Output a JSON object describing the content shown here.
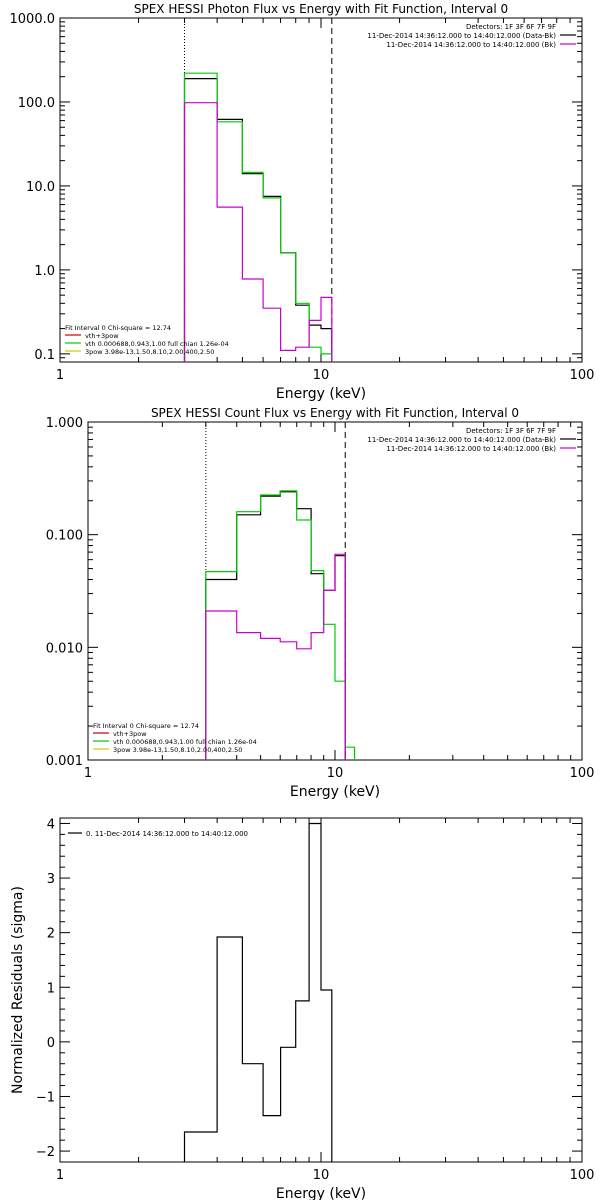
{
  "chart_data": [
    {
      "type": "line",
      "title": "SPEX HESSI Photon Flux vs Energy with Fit Function, Interval 0",
      "xlabel": "Energy (keV)",
      "ylabel": "",
      "xscale": "log",
      "yscale": "log",
      "xlim": [
        1,
        100
      ],
      "ylim": [
        0.08,
        1000
      ],
      "xticks": [
        "1",
        "10",
        "100"
      ],
      "yticks": [
        {
          "v": 0.1,
          "label": "0.1"
        },
        {
          "v": 1,
          "label": "1.0"
        },
        {
          "v": 10,
          "label": "10.0"
        },
        {
          "v": 100,
          "label": "100.0"
        },
        {
          "v": 1000,
          "label": "1000.0"
        }
      ],
      "vlines": [
        {
          "x": 3.0,
          "style": "dotted"
        },
        {
          "x": 11.0,
          "style": "dashed"
        }
      ],
      "legend_top": {
        "position": "top-right",
        "lines": [
          {
            "text": "Detectors: 1F 3F 6F 7F 9F",
            "color": ""
          },
          {
            "text": "11-Dec-2014 14:36:12.000 to 14:40:12.000 (Data-Bk)",
            "color": "#000000"
          },
          {
            "text": "11-Dec-2014 14:36:12.000 to 14:40:12.000 (Bk)",
            "color": "#cc00cc"
          }
        ]
      },
      "legend_bottom": {
        "position": "bottom-left",
        "lines": [
          {
            "text": "Fit Interval 0   Chi-square = 12.74",
            "color": ""
          },
          {
            "text": "vth+3pow",
            "color": "#cc0000"
          },
          {
            "text": "vth 0.000688,0.943,1.00  full chian 1.26e-04",
            "color": "#00cc00"
          },
          {
            "text": "3pow 3.98e-13,1.50,8.10,2.00,400,2.50",
            "color": "#cccc00"
          }
        ]
      },
      "series": [
        {
          "color": "#000000",
          "edges": [
            3.0,
            4.0,
            5.0,
            6.0,
            7.0,
            8.0,
            9.0,
            10.0,
            11.0
          ],
          "values": [
            190,
            62,
            14,
            7.5,
            1.6,
            0.38,
            0.22,
            0.2
          ]
        },
        {
          "color": "#00cc00",
          "edges": [
            3.0,
            4.0,
            5.0,
            6.0,
            7.0,
            8.0,
            9.0,
            10.0,
            11.0
          ],
          "values": [
            220,
            58,
            14.5,
            7.2,
            1.6,
            0.4,
            0.12,
            0.1
          ]
        },
        {
          "color": "#cc00cc",
          "edges": [
            3.0,
            4.0,
            5.0,
            6.0,
            7.0,
            8.0,
            9.0,
            10.0,
            11.0
          ],
          "values": [
            98,
            5.6,
            0.78,
            0.35,
            0.11,
            0.12,
            0.25,
            0.47
          ]
        }
      ]
    },
    {
      "type": "line",
      "title": "SPEX HESSI Count Flux vs Energy with Fit Function, Interval 0",
      "xlabel": "Energy (keV)",
      "ylabel": "",
      "xscale": "log",
      "yscale": "log",
      "xlim": [
        1,
        100
      ],
      "ylim": [
        0.001,
        1
      ],
      "xticks": [
        "1",
        "10",
        "100"
      ],
      "yticks": [
        {
          "v": 0.001,
          "label": "0.001"
        },
        {
          "v": 0.01,
          "label": "0.010"
        },
        {
          "v": 0.1,
          "label": "0.100"
        },
        {
          "v": 1,
          "label": "1.000"
        }
      ],
      "vlines": [
        {
          "x": 3.0,
          "style": "dotted"
        },
        {
          "x": 11.0,
          "style": "dashed"
        }
      ],
      "legend_top": {
        "position": "top-right",
        "lines": [
          {
            "text": "Detectors: 1F 3F 6F 7F 9F",
            "color": ""
          },
          {
            "text": "11-Dec-2014 14:36:12.000 to 14:40:12.000 (Data-Bk)",
            "color": "#000000"
          },
          {
            "text": "11-Dec-2014 14:36:12.000 to 14:40:12.000 (Bk)",
            "color": "#cc00cc"
          }
        ]
      },
      "legend_bottom": {
        "position": "bottom-left",
        "lines": [
          {
            "text": "Fit Interval 0   Chi-square = 12.74",
            "color": ""
          },
          {
            "text": "vth+3pow",
            "color": "#cc0000"
          },
          {
            "text": "vth 0.000688,0.943,1.00  full chian 1.26e-04",
            "color": "#00cc00"
          },
          {
            "text": "3pow 3.98e-13,1.50,8.10,2.00,400,2.50",
            "color": "#cccc00"
          }
        ]
      },
      "series": [
        {
          "color": "#000000",
          "edges": [
            3.0,
            4.0,
            5.0,
            6.0,
            7.0,
            8.0,
            9.0,
            10.0,
            11.0
          ],
          "values": [
            0.04,
            0.15,
            0.22,
            0.24,
            0.17,
            0.045,
            0.032,
            0.065
          ]
        },
        {
          "color": "#00cc00",
          "edges": [
            3.0,
            4.0,
            5.0,
            6.0,
            7.0,
            8.0,
            9.0,
            10.0,
            11.0,
            12.0
          ],
          "values": [
            0.047,
            0.16,
            0.225,
            0.245,
            0.135,
            0.048,
            0.016,
            0.005,
            0.0013
          ]
        },
        {
          "color": "#cc00cc",
          "edges": [
            3.0,
            4.0,
            5.0,
            6.0,
            7.0,
            8.0,
            9.0,
            10.0,
            11.0
          ],
          "values": [
            0.021,
            0.0135,
            0.012,
            0.0112,
            0.0097,
            0.0135,
            0.032,
            0.067
          ]
        }
      ]
    },
    {
      "type": "line",
      "title": "",
      "xlabel": "Energy (keV)",
      "ylabel": "Normalized Residuals (sigma)",
      "xscale": "log",
      "yscale": "linear",
      "xlim": [
        1,
        100
      ],
      "ylim": [
        -2.2,
        4.1
      ],
      "xticks": [
        "1",
        "10",
        "100"
      ],
      "yticks": [
        {
          "v": -2,
          "label": "−2"
        },
        {
          "v": -1,
          "label": "−1"
        },
        {
          "v": 0,
          "label": "0"
        },
        {
          "v": 1,
          "label": "1"
        },
        {
          "v": 2,
          "label": "2"
        },
        {
          "v": 3,
          "label": "3"
        },
        {
          "v": 4,
          "label": "4"
        }
      ],
      "vlines": [],
      "legend_top": {
        "position": "top-left",
        "lines": [
          {
            "text": "0. 11-Dec-2014 14:36:12.000 to 14:40:12.000",
            "color": "#000000"
          }
        ]
      },
      "legend_bottom": {
        "position": "bottom-left",
        "lines": []
      },
      "series": [
        {
          "color": "#000000",
          "edges": [
            3.0,
            4.0,
            5.0,
            6.0,
            7.0,
            8.0,
            9.0,
            10.0,
            11.0
          ],
          "values": [
            -1.65,
            1.92,
            -0.4,
            -1.35,
            -0.1,
            0.75,
            4.0,
            0.95
          ]
        }
      ]
    }
  ]
}
